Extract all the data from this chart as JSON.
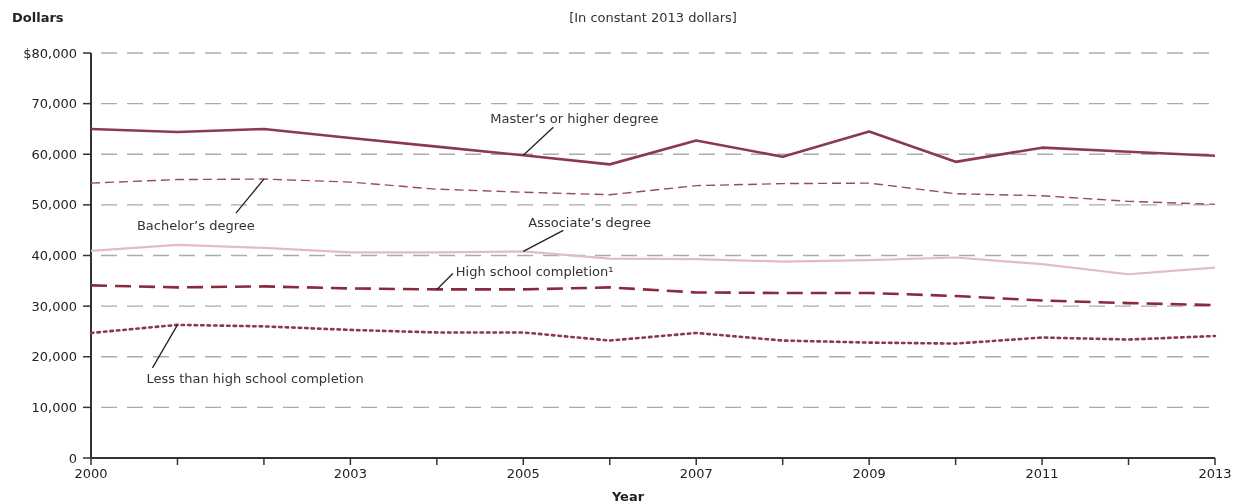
{
  "chart_data": {
    "type": "line",
    "title": "[In constant 2013 dollars]",
    "ylabel": "Dollars",
    "xlabel": "Year",
    "x": [
      2000,
      2001,
      2002,
      2003,
      2004,
      2005,
      2006,
      2007,
      2008,
      2009,
      2010,
      2011,
      2012,
      2013
    ],
    "xlim": [
      2000,
      2013
    ],
    "xticks": [
      2000,
      {
        "value": 2001,
        "label": null
      },
      {
        "value": 2002,
        "label": null
      },
      2003,
      {
        "value": 2004,
        "label": null
      },
      2005,
      {
        "value": 2006,
        "label": null
      },
      2007,
      {
        "value": 2008,
        "label": null
      },
      2009,
      {
        "value": 2010,
        "label": null
      },
      2011,
      {
        "value": 2012,
        "label": null
      },
      2013
    ],
    "ylim": [
      0,
      80000
    ],
    "yticks": [
      {
        "value": 0,
        "label": "0"
      },
      {
        "value": 10000,
        "label": "10,000"
      },
      {
        "value": 20000,
        "label": "20,000"
      },
      {
        "value": 30000,
        "label": "30,000"
      },
      {
        "value": 40000,
        "label": "40,000"
      },
      {
        "value": 50000,
        "label": "50,000"
      },
      {
        "value": 60000,
        "label": "60,000"
      },
      {
        "value": 70000,
        "label": "70,000"
      },
      {
        "value": 80000,
        "label": "$80,000"
      }
    ],
    "grid": "y",
    "legend": false,
    "marker": "none",
    "series": [
      {
        "name": "Master’s or higher degree",
        "color": "#8b3a4c",
        "line_style": "solid",
        "values": [
          65000,
          64400,
          65000,
          63200,
          61500,
          59800,
          58000,
          62700,
          59500,
          64500,
          58500,
          61300,
          60500,
          59700
        ]
      },
      {
        "name": "Bachelor’s degree",
        "color": "#9b4a5c",
        "line_style": "dashed",
        "values": [
          54300,
          55000,
          55100,
          54500,
          53100,
          52500,
          52000,
          53800,
          54200,
          54300,
          52200,
          51800,
          50700,
          50100
        ]
      },
      {
        "name": "Associate’s degree",
        "color": "#e2bcc0",
        "line_style": "solid",
        "values": [
          40900,
          42100,
          41500,
          40600,
          40600,
          40800,
          39400,
          39300,
          38800,
          39100,
          39600,
          38300,
          36300,
          37600
        ]
      },
      {
        "name": "High school completion¹",
        "color": "#8b2a3c",
        "line_style": "dashed",
        "values": [
          34100,
          33700,
          33900,
          33500,
          33300,
          33300,
          33700,
          32700,
          32600,
          32600,
          32000,
          31100,
          30600,
          30200
        ]
      },
      {
        "name": "Less than high school completion",
        "color": "#8b3a4c",
        "line_style": "dotted",
        "values": [
          24700,
          26300,
          26000,
          25300,
          24800,
          24800,
          23200,
          24700,
          23200,
          22800,
          22600,
          23800,
          23400,
          24100
        ]
      }
    ]
  }
}
